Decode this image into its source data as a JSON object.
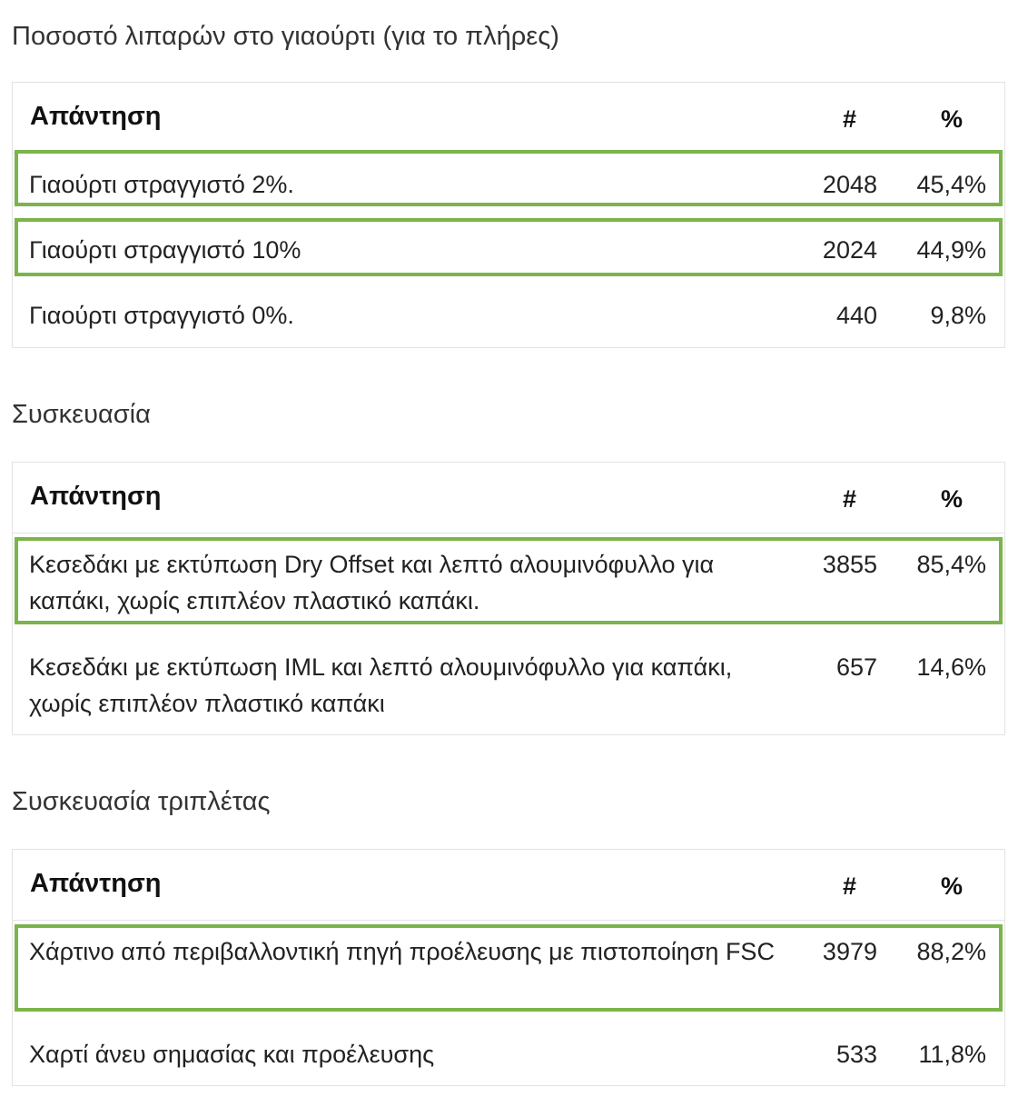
{
  "sections": [
    {
      "title": "Ποσοστό λιπαρών στο γιαούρτι (για το πλήρες)",
      "header": {
        "answer": "Απάντηση",
        "count": "#",
        "percent": "%"
      },
      "rows": [
        {
          "label": "Γιαούρτι στραγγιστό 2%.",
          "count": "2048",
          "percent": "45,4%",
          "highlighted": true
        },
        {
          "label": "Γιαούρτι στραγγιστό 10%",
          "count": "2024",
          "percent": "44,9%",
          "highlighted": true
        },
        {
          "label": "Γιαούρτι στραγγιστό 0%.",
          "count": "440",
          "percent": "9,8%",
          "highlighted": false
        }
      ]
    },
    {
      "title": "Συσκευασία",
      "header": {
        "answer": "Απάντηση",
        "count": "#",
        "percent": "%"
      },
      "rows": [
        {
          "label": "Κεσεδάκι με εκτύπωση Dry Offset και λεπτό αλουμινόφυλλο για καπάκι, χωρίς επιπλέον πλαστικό καπάκι.",
          "count": "3855",
          "percent": "85,4%",
          "highlighted": true
        },
        {
          "label": "Κεσεδάκι με εκτύπωση IML και λεπτό αλουμινόφυλλο για καπάκι, χωρίς επιπλέον πλαστικό καπάκι",
          "count": "657",
          "percent": "14,6%",
          "highlighted": false
        }
      ]
    },
    {
      "title": "Συσκευασία τριπλέτας",
      "header": {
        "answer": "Απάντηση",
        "count": "#",
        "percent": "%"
      },
      "rows": [
        {
          "label": "Χάρτινο από περιβαλλοντική πηγή προέλευσης με πιστοποίηση FSC",
          "count": "3979",
          "percent": "88,2%",
          "highlighted": true
        },
        {
          "label": "Χαρτί άνευ σημασίας και προέλευσης",
          "count": "533",
          "percent": "11,8%",
          "highlighted": false
        }
      ]
    }
  ],
  "colors": {
    "highlight": "#7bb44a",
    "border": "#e3e3e3"
  }
}
